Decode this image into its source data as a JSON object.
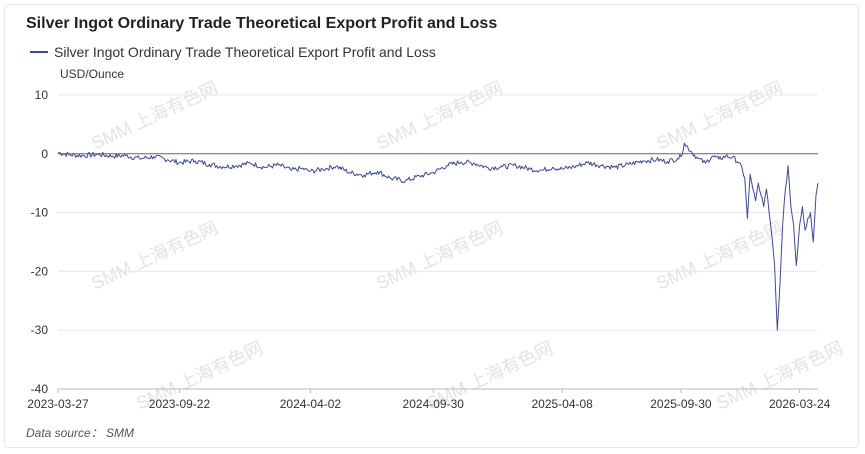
{
  "header": {
    "title": "Silver Ingot Ordinary Trade Theoretical Export Profit and Loss",
    "source": "Data source： SMM"
  },
  "watermark": "SMM 上海有色网",
  "colors": {
    "series": "#3d4a8f",
    "grid": "#e8e8e8",
    "zero_line": "#666666"
  },
  "chart_data": {
    "type": "line",
    "title": "Silver Ingot Ordinary Trade Theoretical Export Profit and Loss",
    "ylabel": "USD/Ounce",
    "ylim": [
      -40,
      10
    ],
    "yticks": [
      10,
      0,
      -10,
      -20,
      -30,
      -40
    ],
    "xlim": [
      "2023-03-27",
      "2026-04-20"
    ],
    "xticks": [
      "2023-03-27",
      "2023-09-22",
      "2024-04-02",
      "2024-09-30",
      "2025-04-08",
      "2025-09-30",
      "2026-03-24"
    ],
    "legend_position": "top-left",
    "grid": true,
    "series": [
      {
        "name": "Silver Ingot Ordinary Trade Theoretical Export Profit and Loss",
        "x": [
          "2023-03-27",
          "2023-04-15",
          "2023-05-05",
          "2023-05-25",
          "2023-06-15",
          "2023-07-05",
          "2023-07-25",
          "2023-08-15",
          "2023-09-05",
          "2023-09-22",
          "2023-10-15",
          "2023-11-05",
          "2023-11-25",
          "2023-12-15",
          "2024-01-05",
          "2024-01-25",
          "2024-02-15",
          "2024-03-05",
          "2024-03-20",
          "2024-04-02",
          "2024-04-20",
          "2024-05-10",
          "2024-05-30",
          "2024-06-20",
          "2024-07-10",
          "2024-07-30",
          "2024-08-20",
          "2024-09-10",
          "2024-09-30",
          "2024-10-20",
          "2024-11-10",
          "2024-11-30",
          "2024-12-20",
          "2025-01-10",
          "2025-01-30",
          "2025-02-20",
          "2025-03-10",
          "2025-03-25",
          "2025-04-08",
          "2025-04-25",
          "2025-05-15",
          "2025-06-05",
          "2025-06-25",
          "2025-07-15",
          "2025-08-05",
          "2025-08-25",
          "2025-09-10",
          "2025-09-25",
          "2025-09-30",
          "2025-10-05",
          "2025-10-15",
          "2025-10-25",
          "2025-11-05",
          "2025-11-15",
          "2025-11-25",
          "2025-12-05",
          "2025-12-15",
          "2025-12-25",
          "2026-01-02",
          "2026-01-06",
          "2026-01-10",
          "2026-01-14",
          "2026-01-18",
          "2026-01-22",
          "2026-01-26",
          "2026-01-30",
          "2026-02-03",
          "2026-02-07",
          "2026-02-11",
          "2026-02-15",
          "2026-02-19",
          "2026-02-23",
          "2026-02-27",
          "2026-03-03",
          "2026-03-07",
          "2026-03-11",
          "2026-03-15",
          "2026-03-19",
          "2026-03-24",
          "2026-03-28",
          "2026-04-01",
          "2026-04-05",
          "2026-04-09",
          "2026-04-13",
          "2026-04-17",
          "2026-04-20"
        ],
        "values": [
          0.2,
          -0.2,
          -0.3,
          -0.1,
          -0.4,
          -0.3,
          -0.8,
          -0.5,
          -1.0,
          -1.5,
          -1.2,
          -1.8,
          -2.2,
          -2.0,
          -1.6,
          -2.3,
          -1.9,
          -2.8,
          -2.5,
          -3.0,
          -2.6,
          -2.1,
          -3.2,
          -3.6,
          -3.0,
          -4.2,
          -4.6,
          -3.8,
          -3.2,
          -2.0,
          -1.4,
          -1.6,
          -2.4,
          -2.2,
          -2.0,
          -2.6,
          -2.8,
          -2.3,
          -2.6,
          -2.2,
          -1.5,
          -2.0,
          -2.3,
          -1.8,
          -1.2,
          -1.0,
          -1.3,
          -0.8,
          -0.5,
          1.8,
          0.4,
          -0.8,
          -1.6,
          -0.4,
          -0.9,
          -0.4,
          -0.6,
          -1.5,
          -4.0,
          -11.0,
          -3.5,
          -6.0,
          -8.0,
          -5.0,
          -7.0,
          -9.0,
          -6.0,
          -10.0,
          -14.0,
          -19.0,
          -30.0,
          -22.0,
          -12.0,
          -6.0,
          -2.0,
          -9.0,
          -12.0,
          -19.0,
          -12.0,
          -9.0,
          -13.0,
          -11.0,
          -10.0,
          -15.0,
          -7.0,
          -5.0
        ]
      }
    ]
  }
}
